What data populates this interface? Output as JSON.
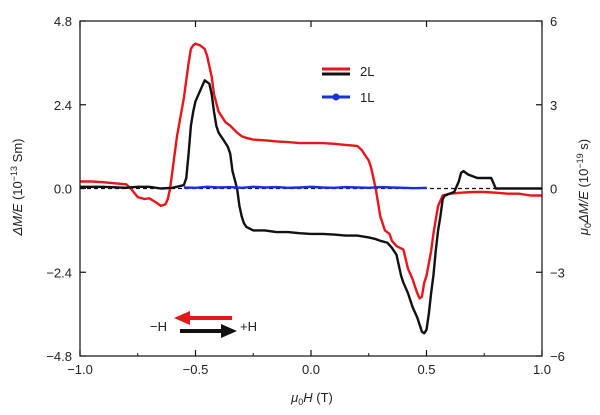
{
  "chart_data": {
    "type": "line",
    "xlabel": {
      "prefix": "μ",
      "sub": "0",
      "main": "H",
      "unit": " (T)"
    },
    "ylabel_left": {
      "main": "ΔM/E",
      "unit": " (10",
      "exp": "−13",
      "tail": " Sm)"
    },
    "ylabel_right": {
      "prefix": "μ",
      "sub": "0",
      "main": "ΔM/E",
      "unit": " (10",
      "exp": "−19",
      "tail": " s)"
    },
    "xlim": [
      -1.0,
      1.0
    ],
    "ylim_left": [
      -4.8,
      4.8
    ],
    "ylim_right": [
      -6,
      6
    ],
    "x_ticks": [
      -1.0,
      -0.5,
      0.0,
      0.5,
      1.0
    ],
    "x_tick_labels": [
      "−1.0",
      "−0.5",
      "0.0",
      "0.5",
      "1.0"
    ],
    "y_left_ticks": [
      -4.8,
      -2.4,
      0.0,
      2.4,
      4.8
    ],
    "y_left_tick_labels": [
      "−4.8",
      "−2.4",
      "0.0",
      "2.4",
      "4.8"
    ],
    "y_right_ticks": [
      -6,
      -3,
      0,
      3,
      6
    ],
    "y_right_tick_labels": [
      "−6",
      "−3",
      "0",
      "3",
      "6"
    ],
    "grid": false,
    "legend_position": "top-center",
    "zero_line": "dashed",
    "series": [
      {
        "name": "2L",
        "color": "#e8151b",
        "axis": "left",
        "x": [
          -1.0,
          -0.95,
          -0.9,
          -0.85,
          -0.8,
          -0.78,
          -0.75,
          -0.72,
          -0.7,
          -0.67,
          -0.65,
          -0.63,
          -0.62,
          -0.61,
          -0.6,
          -0.58,
          -0.55,
          -0.53,
          -0.52,
          -0.51,
          -0.5,
          -0.48,
          -0.46,
          -0.45,
          -0.44,
          -0.43,
          -0.42,
          -0.4,
          -0.37,
          -0.35,
          -0.32,
          -0.3,
          -0.28,
          -0.25,
          -0.2,
          -0.15,
          -0.1,
          -0.05,
          0.0,
          0.05,
          0.1,
          0.15,
          0.2,
          0.22,
          0.24,
          0.25,
          0.26,
          0.27,
          0.28,
          0.3,
          0.32,
          0.34,
          0.35,
          0.37,
          0.4,
          0.42,
          0.44,
          0.45,
          0.46,
          0.47,
          0.48,
          0.49,
          0.5,
          0.52,
          0.53,
          0.54,
          0.55,
          0.57,
          0.6,
          0.65,
          0.7,
          0.75,
          0.8,
          0.85,
          0.9,
          0.95,
          1.0
        ],
        "y": [
          0.2,
          0.2,
          0.18,
          0.15,
          0.12,
          0.0,
          -0.25,
          -0.3,
          -0.28,
          -0.4,
          -0.5,
          -0.45,
          -0.3,
          0.0,
          0.5,
          1.5,
          2.6,
          3.6,
          4.0,
          4.1,
          4.15,
          4.1,
          4.0,
          3.8,
          3.5,
          3.2,
          2.7,
          2.2,
          1.9,
          1.8,
          1.6,
          1.5,
          1.45,
          1.4,
          1.38,
          1.35,
          1.33,
          1.3,
          1.3,
          1.3,
          1.28,
          1.25,
          1.22,
          1.1,
          0.9,
          0.8,
          0.6,
          0.3,
          0.0,
          -0.8,
          -1.2,
          -1.3,
          -1.5,
          -1.65,
          -1.75,
          -2.3,
          -2.6,
          -2.8,
          -3.0,
          -3.15,
          -3.1,
          -2.7,
          -2.5,
          -1.8,
          -1.3,
          -0.9,
          -0.5,
          -0.2,
          -0.15,
          -0.12,
          -0.1,
          -0.1,
          -0.12,
          -0.15,
          -0.15,
          -0.2,
          -0.2
        ]
      },
      {
        "name": "2L",
        "color": "#111111",
        "axis": "left",
        "x": [
          -1.0,
          -0.9,
          -0.8,
          -0.75,
          -0.7,
          -0.65,
          -0.6,
          -0.56,
          -0.55,
          -0.54,
          -0.53,
          -0.52,
          -0.51,
          -0.5,
          -0.48,
          -0.46,
          -0.45,
          -0.44,
          -0.43,
          -0.42,
          -0.41,
          -0.4,
          -0.38,
          -0.36,
          -0.35,
          -0.34,
          -0.32,
          -0.31,
          -0.3,
          -0.29,
          -0.28,
          -0.25,
          -0.2,
          -0.15,
          -0.1,
          -0.05,
          0.0,
          0.05,
          0.1,
          0.15,
          0.2,
          0.25,
          0.28,
          0.3,
          0.33,
          0.35,
          0.37,
          0.38,
          0.39,
          0.4,
          0.42,
          0.44,
          0.46,
          0.47,
          0.48,
          0.49,
          0.5,
          0.51,
          0.52,
          0.53,
          0.54,
          0.55,
          0.56,
          0.57,
          0.58,
          0.6,
          0.62,
          0.64,
          0.65,
          0.66,
          0.68,
          0.7,
          0.72,
          0.75,
          0.78,
          0.8,
          0.9,
          1.0
        ],
        "y": [
          0.05,
          0.05,
          0.02,
          0.05,
          0.05,
          0.0,
          0.02,
          0.08,
          0.1,
          0.3,
          1.0,
          1.8,
          2.2,
          2.5,
          2.8,
          3.1,
          3.05,
          3.0,
          2.7,
          2.2,
          1.8,
          1.6,
          1.4,
          1.2,
          1.0,
          0.5,
          0.0,
          -0.5,
          -0.8,
          -1.0,
          -1.1,
          -1.2,
          -1.2,
          -1.25,
          -1.25,
          -1.28,
          -1.3,
          -1.3,
          -1.32,
          -1.35,
          -1.35,
          -1.4,
          -1.45,
          -1.5,
          -1.55,
          -1.7,
          -1.9,
          -2.2,
          -2.5,
          -2.7,
          -3.0,
          -3.4,
          -3.7,
          -3.9,
          -4.1,
          -4.15,
          -4.05,
          -3.6,
          -3.0,
          -2.5,
          -1.8,
          -1.2,
          -0.8,
          -0.3,
          -0.2,
          -0.15,
          -0.1,
          0.2,
          0.45,
          0.5,
          0.4,
          0.35,
          0.3,
          0.3,
          0.3,
          0.0,
          0.0,
          0.0
        ]
      },
      {
        "name": "1L",
        "color": "#1a2fd6",
        "axis": "left",
        "x": [
          -0.55,
          -0.5,
          -0.45,
          -0.4,
          -0.35,
          -0.3,
          -0.25,
          -0.2,
          -0.15,
          -0.1,
          -0.05,
          0.0,
          0.05,
          0.1,
          0.15,
          0.2,
          0.25,
          0.3,
          0.35,
          0.4,
          0.45,
          0.5
        ],
        "y": [
          0.03,
          0.02,
          0.05,
          0.03,
          0.04,
          0.02,
          0.05,
          0.03,
          0.04,
          0.02,
          0.03,
          0.05,
          0.03,
          0.02,
          0.04,
          0.03,
          0.02,
          0.04,
          0.03,
          0.02,
          0.01,
          0.02
        ]
      }
    ],
    "legend": [
      {
        "label": "2L",
        "colors": [
          "#e8151b",
          "#111111"
        ]
      },
      {
        "label": "1L",
        "colors": [
          "#1a2fd6"
        ],
        "marker": "circle"
      }
    ],
    "annotation": {
      "left": "−H",
      "right": "+H"
    }
  }
}
